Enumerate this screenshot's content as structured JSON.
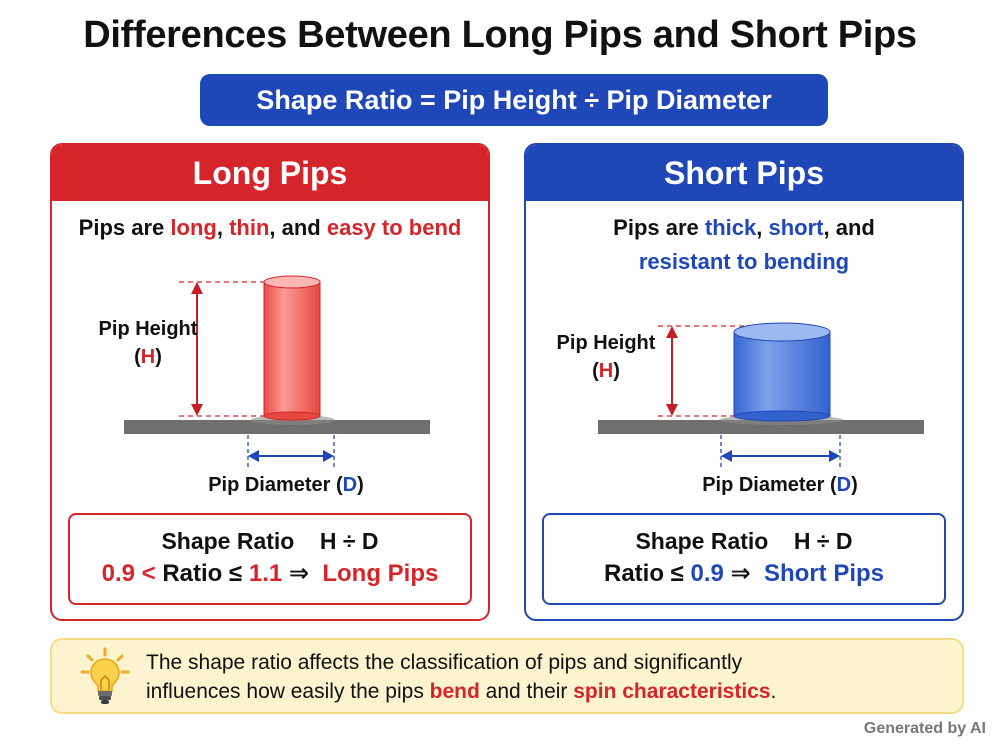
{
  "title": "Differences Between Long Pips and Short Pips",
  "formula": "Shape Ratio = Pip Height ÷ Pip Diameter",
  "long_panel": {
    "heading": "Long Pips",
    "desc_prefix": "Pips are ",
    "desc_w1": "long",
    "desc_sep1": ", ",
    "desc_w2": "thin",
    "desc_sep2": ", and ",
    "desc_w3": "easy to bend",
    "height_label": "Pip Height",
    "height_open": "(",
    "height_symbol": "H",
    "height_close": ")",
    "diameter_label": "Pip Diameter (",
    "diameter_symbol": "D",
    "diameter_close": ")",
    "ratio_title": "Shape Ratio",
    "ratio_expr": "H ÷ D",
    "cond_low": "0.9 <",
    "cond_mid": " Ratio ≤ ",
    "cond_high": "1.1",
    "cond_arrow": " ⇒ ",
    "cond_result": "Long Pips",
    "colors": {
      "accent": "#d6252a",
      "pip_fill": "#f4706b"
    }
  },
  "short_panel": {
    "heading": "Short Pips",
    "desc_line1_prefix": "Pips are ",
    "desc_w1": "thick",
    "desc_sep1": ", ",
    "desc_w2": "short",
    "desc_sep2": ", and",
    "desc_line2": "resistant to bending",
    "height_label": "Pip Height",
    "height_open": "(",
    "height_symbol": "H",
    "height_close": ")",
    "diameter_label": "Pip Diameter (",
    "diameter_symbol": "D",
    "diameter_close": ")",
    "ratio_title": "Shape Ratio",
    "ratio_expr": "H ÷ D",
    "cond_low": "Ratio ≤ ",
    "cond_high": "0.9",
    "cond_arrow": " ⇒ ",
    "cond_result": "Short Pips",
    "colors": {
      "accent": "#1f47b8",
      "pip_fill": "#4f7fe0"
    }
  },
  "note": {
    "line1": "The shape ratio affects the classification of pips and significantly",
    "line2_prefix": "influences how easily the pips ",
    "line2_em1": "bend",
    "line2_mid": " and their ",
    "line2_em2": "spin characteristics",
    "line2_end": ".",
    "icon": "lightbulb-icon"
  },
  "credit": "Generated by AI"
}
